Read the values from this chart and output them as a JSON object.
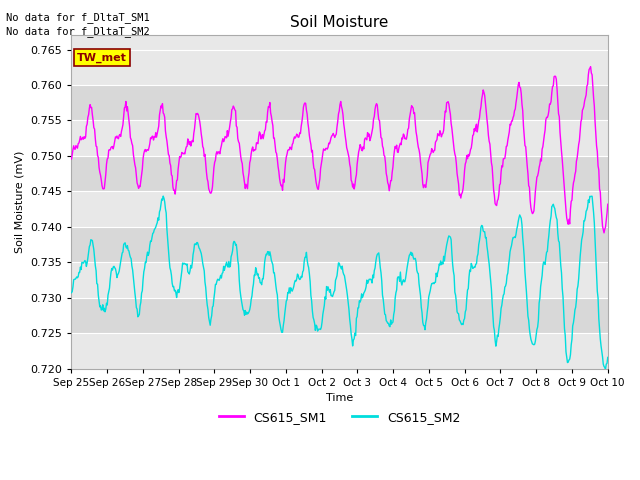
{
  "title": "Soil Moisture",
  "ylabel": "Soil Moisture (mV)",
  "xlabel": "Time",
  "ylim": [
    0.72,
    0.767
  ],
  "yticks": [
    0.72,
    0.725,
    0.73,
    0.735,
    0.74,
    0.745,
    0.75,
    0.755,
    0.76,
    0.765
  ],
  "xtick_labels": [
    "Sep 25",
    "Sep 26",
    "Sep 27",
    "Sep 28",
    "Sep 29",
    "Sep 30",
    "Oct 1",
    "Oct 2",
    "Oct 3",
    "Oct 4",
    "Oct 5",
    "Oct 6",
    "Oct 7",
    "Oct 8",
    "Oct 9",
    "Oct 10"
  ],
  "sm1_color": "#FF00FF",
  "sm2_color": "#00DDDD",
  "bg_color": "#E8E8E8",
  "bg_color2": "#D8D8D8",
  "text_no_data1": "No data for f_DltaT_SM1",
  "text_no_data2": "No data for f_DltaT_SM2",
  "legend_label1": "CS615_SM1",
  "legend_label2": "CS615_SM2",
  "tw_met_label": "TW_met",
  "tw_met_bg": "#FFFF00",
  "tw_met_border": "#8B0000"
}
